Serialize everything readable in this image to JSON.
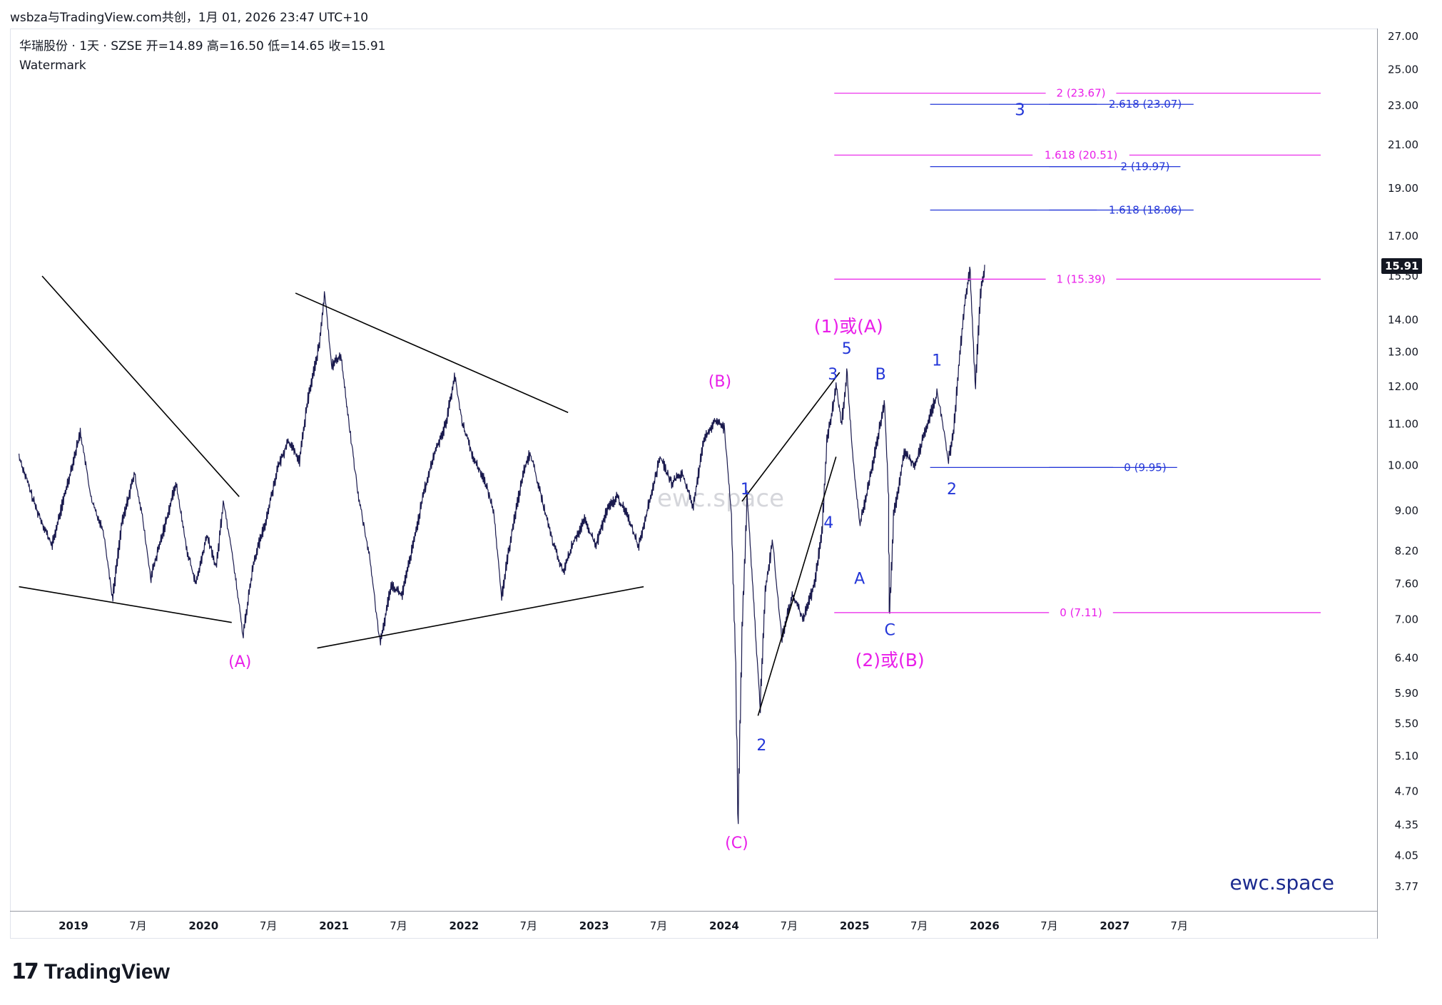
{
  "header": {
    "title": "wsbza与TradingView.com共创，1月 01, 2026 23:47 UTC+10"
  },
  "legend": {
    "symbol_line": "华瑞股份 · 1天 · SZSE  开=14.89  高=16.50  低=14.65  收=15.91",
    "watermark_line": "Watermark"
  },
  "brand": {
    "logo_mark": "17",
    "logo_name": "TradingView"
  },
  "chart_data": {
    "type": "candlestick",
    "symbol": "华瑞股份",
    "interval": "1天",
    "exchange": "SZSE",
    "ohlc": {
      "open": 14.89,
      "high": 16.5,
      "low": 14.65,
      "close": 15.91
    },
    "last_price_label": "15.91",
    "y_scale": "log",
    "ylim": [
      3.6,
      27.5
    ],
    "xlim": [
      "2018-08-01",
      "2027-12-31"
    ],
    "price_ticks": [
      "27.00",
      "25.00",
      "23.00",
      "21.00",
      "19.00",
      "17.00",
      "15.50",
      "14.00",
      "13.00",
      "12.00",
      "11.00",
      "10.00",
      "9.00",
      "8.20",
      "7.60",
      "7.00",
      "6.40",
      "5.90",
      "5.50",
      "5.10",
      "4.70",
      "4.35",
      "4.05",
      "3.77"
    ],
    "time_ticks": [
      {
        "date": "2019-01-01",
        "label": "2019",
        "bold": true
      },
      {
        "date": "2019-07-01",
        "label": "7月",
        "bold": false
      },
      {
        "date": "2020-01-01",
        "label": "2020",
        "bold": true
      },
      {
        "date": "2020-07-01",
        "label": "7月",
        "bold": false
      },
      {
        "date": "2021-01-01",
        "label": "2021",
        "bold": true
      },
      {
        "date": "2021-07-01",
        "label": "7月",
        "bold": false
      },
      {
        "date": "2022-01-01",
        "label": "2022",
        "bold": true
      },
      {
        "date": "2022-07-01",
        "label": "7月",
        "bold": false
      },
      {
        "date": "2023-01-01",
        "label": "2023",
        "bold": true
      },
      {
        "date": "2023-07-01",
        "label": "7月",
        "bold": false
      },
      {
        "date": "2024-01-01",
        "label": "2024",
        "bold": true
      },
      {
        "date": "2024-07-01",
        "label": "7月",
        "bold": false
      },
      {
        "date": "2025-01-01",
        "label": "2025",
        "bold": true
      },
      {
        "date": "2025-07-01",
        "label": "7月",
        "bold": false
      },
      {
        "date": "2026-01-01",
        "label": "2026",
        "bold": true
      },
      {
        "date": "2026-07-01",
        "label": "7月",
        "bold": false
      },
      {
        "date": "2027-01-01",
        "label": "2027",
        "bold": true
      },
      {
        "date": "2027-07-01",
        "label": "7月",
        "bold": false
      }
    ],
    "price_path": [
      [
        "2018-08-01",
        10.2
      ],
      [
        "2018-09-15",
        9.1
      ],
      [
        "2018-11-01",
        8.3
      ],
      [
        "2018-12-15",
        9.6
      ],
      [
        "2019-01-20",
        10.8
      ],
      [
        "2019-02-20",
        9.2
      ],
      [
        "2019-03-25",
        8.6
      ],
      [
        "2019-04-20",
        7.35
      ],
      [
        "2019-05-15",
        8.7
      ],
      [
        "2019-06-20",
        9.8
      ],
      [
        "2019-07-10",
        9.0
      ],
      [
        "2019-08-05",
        7.7
      ],
      [
        "2019-09-10",
        8.6
      ],
      [
        "2019-10-15",
        9.6
      ],
      [
        "2019-11-15",
        8.2
      ],
      [
        "2019-12-10",
        7.6
      ],
      [
        "2020-01-10",
        8.5
      ],
      [
        "2020-02-05",
        7.9
      ],
      [
        "2020-02-25",
        9.2
      ],
      [
        "2020-03-20",
        8.2
      ],
      [
        "2020-04-20",
        6.75
      ],
      [
        "2020-05-20",
        8.0
      ],
      [
        "2020-06-20",
        8.7
      ],
      [
        "2020-07-25",
        9.9
      ],
      [
        "2020-08-25",
        10.6
      ],
      [
        "2020-09-25",
        10.1
      ],
      [
        "2020-10-20",
        11.7
      ],
      [
        "2020-11-20",
        13.2
      ],
      [
        "2020-12-05",
        14.9
      ],
      [
        "2020-12-25",
        12.6
      ],
      [
        "2021-01-20",
        12.9
      ],
      [
        "2021-02-10",
        11.1
      ],
      [
        "2021-03-10",
        9.3
      ],
      [
        "2021-04-10",
        8.1
      ],
      [
        "2021-05-10",
        6.6
      ],
      [
        "2021-06-10",
        7.6
      ],
      [
        "2021-07-10",
        7.4
      ],
      [
        "2021-08-10",
        8.3
      ],
      [
        "2021-09-10",
        9.4
      ],
      [
        "2021-10-10",
        10.3
      ],
      [
        "2021-11-10",
        11.0
      ],
      [
        "2021-12-05",
        12.3
      ],
      [
        "2021-12-25",
        11.1
      ],
      [
        "2022-01-25",
        10.2
      ],
      [
        "2022-02-25",
        9.7
      ],
      [
        "2022-03-25",
        9.0
      ],
      [
        "2022-04-15",
        7.35
      ],
      [
        "2022-05-15",
        8.6
      ],
      [
        "2022-06-15",
        9.8
      ],
      [
        "2022-07-05",
        10.3
      ],
      [
        "2022-08-05",
        9.3
      ],
      [
        "2022-09-05",
        8.4
      ],
      [
        "2022-10-05",
        7.8
      ],
      [
        "2022-11-05",
        8.4
      ],
      [
        "2022-12-05",
        8.8
      ],
      [
        "2023-01-05",
        8.3
      ],
      [
        "2023-02-05",
        9.0
      ],
      [
        "2023-03-05",
        9.3
      ],
      [
        "2023-04-05",
        8.9
      ],
      [
        "2023-05-05",
        8.3
      ],
      [
        "2023-06-05",
        9.2
      ],
      [
        "2023-07-05",
        10.2
      ],
      [
        "2023-08-05",
        9.6
      ],
      [
        "2023-09-05",
        9.8
      ],
      [
        "2023-10-05",
        9.1
      ],
      [
        "2023-11-05",
        10.6
      ],
      [
        "2023-12-05",
        11.1
      ],
      [
        "2024-01-01",
        10.9
      ],
      [
        "2024-01-20",
        9.0
      ],
      [
        "2024-02-01",
        6.4
      ],
      [
        "2024-02-08",
        4.4
      ],
      [
        "2024-02-20",
        6.9
      ],
      [
        "2024-03-05",
        9.3
      ],
      [
        "2024-03-20",
        7.6
      ],
      [
        "2024-04-10",
        5.7
      ],
      [
        "2024-04-25",
        7.5
      ],
      [
        "2024-05-15",
        8.4
      ],
      [
        "2024-06-10",
        6.7
      ],
      [
        "2024-07-10",
        7.4
      ],
      [
        "2024-08-10",
        7.0
      ],
      [
        "2024-09-10",
        7.6
      ],
      [
        "2024-10-01",
        8.6
      ],
      [
        "2024-10-15",
        10.6
      ],
      [
        "2024-11-10",
        12.0
      ],
      [
        "2024-11-25",
        11.0
      ],
      [
        "2024-12-10",
        12.4
      ],
      [
        "2024-12-25",
        10.3
      ],
      [
        "2025-01-15",
        8.7
      ],
      [
        "2025-02-10",
        9.6
      ],
      [
        "2025-03-05",
        10.6
      ],
      [
        "2025-03-25",
        11.6
      ],
      [
        "2025-04-05",
        9.4
      ],
      [
        "2025-04-08",
        7.1
      ],
      [
        "2025-04-20",
        8.9
      ],
      [
        "2025-05-20",
        10.3
      ],
      [
        "2025-06-20",
        10.0
      ],
      [
        "2025-07-20",
        10.9
      ],
      [
        "2025-08-20",
        11.8
      ],
      [
        "2025-09-05",
        11.0
      ],
      [
        "2025-09-20",
        10.1
      ],
      [
        "2025-10-05",
        10.8
      ],
      [
        "2025-10-20",
        12.6
      ],
      [
        "2025-11-05",
        14.5
      ],
      [
        "2025-11-20",
        15.8
      ],
      [
        "2025-12-05",
        12.0
      ],
      [
        "2025-12-20",
        14.9
      ],
      [
        "2026-01-01",
        15.91
      ]
    ],
    "trendlines": [
      {
        "from": [
          "2018-10-05",
          15.5
        ],
        "to": [
          "2020-04-10",
          9.3
        ]
      },
      {
        "from": [
          "2018-08-01",
          7.55
        ],
        "to": [
          "2020-03-20",
          6.95
        ]
      },
      {
        "from": [
          "2020-09-15",
          14.9
        ],
        "to": [
          "2022-10-20",
          11.3
        ]
      },
      {
        "from": [
          "2020-11-15",
          6.55
        ],
        "to": [
          "2023-05-20",
          7.55
        ]
      },
      {
        "from": [
          "2024-02-20",
          9.2
        ],
        "to": [
          "2024-11-20",
          12.4
        ]
      },
      {
        "from": [
          "2024-04-05",
          5.6
        ],
        "to": [
          "2024-11-10",
          10.2
        ]
      }
    ],
    "fib_levels": [
      {
        "label": "2 (23.67)",
        "price": 23.67,
        "color": "#e91ee9",
        "from": "2024-11-05",
        "to": "2028-08-01"
      },
      {
        "label": "1.618 (20.51)",
        "price": 20.51,
        "color": "#e91ee9",
        "from": "2024-11-05",
        "to": "2028-08-01"
      },
      {
        "label": "1 (15.39)",
        "price": 15.39,
        "color": "#e91ee9",
        "from": "2024-11-05",
        "to": "2028-08-01"
      },
      {
        "label": "0 (7.11)",
        "price": 7.11,
        "color": "#e91ee9",
        "from": "2024-11-05",
        "to": "2028-08-01"
      },
      {
        "label": "2.618 (23.07)",
        "price": 23.07,
        "color": "#2336d8",
        "from": "2025-08-01",
        "to": "2026-07-01"
      },
      {
        "label": "2 (19.97)",
        "price": 19.97,
        "color": "#2336d8",
        "from": "2025-08-01",
        "to": "2026-07-01"
      },
      {
        "label": "1.618 (18.06)",
        "price": 18.06,
        "color": "#2336d8",
        "from": "2025-08-01",
        "to": "2026-07-01"
      },
      {
        "label": "0 (9.95)",
        "price": 9.95,
        "color": "#2336d8",
        "from": "2025-08-01",
        "to": "2026-07-01"
      }
    ],
    "wave_labels": [
      {
        "text": "(A)",
        "date": "2020-04-12",
        "price": 6.27,
        "color": "#e91ee9",
        "size": 22
      },
      {
        "text": "(B)",
        "date": "2023-12-20",
        "price": 12.0,
        "color": "#e91ee9",
        "size": 22
      },
      {
        "text": "(C)",
        "date": "2024-02-05",
        "price": 4.12,
        "color": "#e91ee9",
        "size": 22
      },
      {
        "text": "(1)或(A)",
        "date": "2024-12-15",
        "price": 13.6,
        "color": "#e91ee9",
        "size": 25
      },
      {
        "text": "(2)或(B)",
        "date": "2025-04-10",
        "price": 6.28,
        "color": "#e91ee9",
        "size": 25
      },
      {
        "text": "1",
        "date": "2024-03-01",
        "price": 9.35,
        "color": "#2336d8",
        "size": 22
      },
      {
        "text": "2",
        "date": "2024-04-15",
        "price": 5.17,
        "color": "#2336d8",
        "size": 22
      },
      {
        "text": "3",
        "date": "2024-11-01",
        "price": 12.2,
        "color": "#2336d8",
        "size": 22
      },
      {
        "text": "4",
        "date": "2024-10-20",
        "price": 8.65,
        "color": "#2336d8",
        "size": 22
      },
      {
        "text": "5",
        "date": "2024-12-10",
        "price": 12.95,
        "color": "#2336d8",
        "size": 22
      },
      {
        "text": "A",
        "date": "2025-01-15",
        "price": 7.6,
        "color": "#2336d8",
        "size": 22
      },
      {
        "text": "B",
        "date": "2025-03-15",
        "price": 12.2,
        "color": "#2336d8",
        "size": 22
      },
      {
        "text": "C",
        "date": "2025-04-10",
        "price": 6.75,
        "color": "#2336d8",
        "size": 22
      },
      {
        "text": "1",
        "date": "2025-08-20",
        "price": 12.6,
        "color": "#2336d8",
        "size": 22
      },
      {
        "text": "2",
        "date": "2025-10-01",
        "price": 9.35,
        "color": "#2336d8",
        "size": 22
      },
      {
        "text": "3",
        "date": "2026-04-10",
        "price": 22.5,
        "color": "#2336d8",
        "size": 23
      }
    ],
    "chart_watermark_center": "ewc.space",
    "chart_watermark_corner": "ewc.space"
  }
}
